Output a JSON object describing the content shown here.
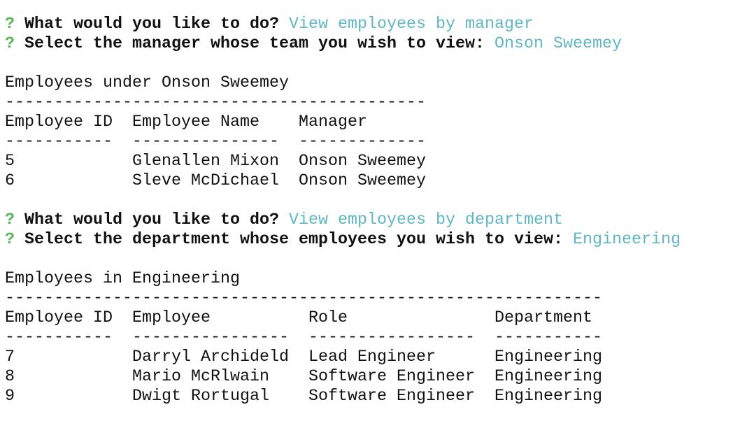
{
  "sections": [
    {
      "prompts": [
        {
          "marker": "?",
          "question": "What would you like to do?",
          "answer": "View employees by manager"
        },
        {
          "marker": "?",
          "question": "Select the manager whose team you wish to view:",
          "answer": "Onson Sweemey"
        }
      ],
      "heading": "Employees under Onson Sweemey",
      "separator": "-------------------------------------------",
      "table": {
        "header": [
          "Employee ID",
          "Employee Name",
          "Manager"
        ],
        "underline": [
          "-----------",
          "---------------",
          "-------------"
        ],
        "rows": [
          [
            "5",
            "Glenallen Mixon",
            "Onson Sweemey"
          ],
          [
            "6",
            "Sleve McDichael",
            "Onson Sweemey"
          ]
        ]
      }
    },
    {
      "prompts": [
        {
          "marker": "?",
          "question": "What would you like to do?",
          "answer": "View employees by department"
        },
        {
          "marker": "?",
          "question": "Select the department whose employees you wish to view:",
          "answer": "Engineering"
        }
      ],
      "heading": "Employees in Engineering",
      "separator": "-------------------------------------------------------------",
      "table": {
        "header": [
          "Employee ID",
          "Employee",
          "Role",
          "Department"
        ],
        "underline": [
          "-----------",
          "----------------",
          "-----------------",
          "-----------"
        ],
        "rows": [
          [
            "7",
            "Darryl Archideld",
            "Lead Engineer",
            "Engineering"
          ],
          [
            "8",
            "Mario McRlwain",
            "Software Engineer",
            "Engineering"
          ],
          [
            "9",
            "Dwigt Rortugal",
            "Software Engineer",
            "Engineering"
          ]
        ]
      }
    }
  ]
}
